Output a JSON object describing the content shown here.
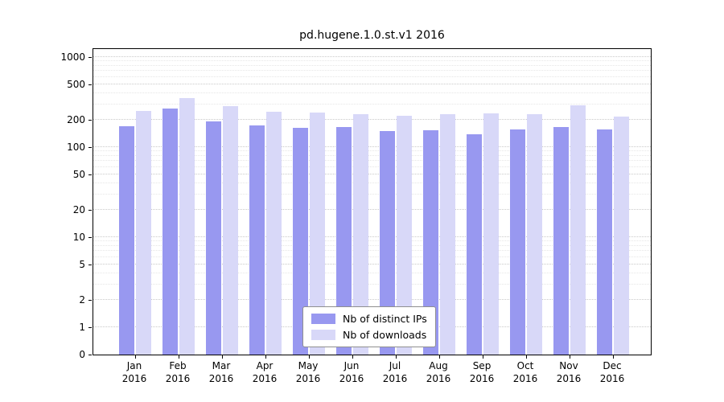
{
  "chart_data": {
    "type": "bar",
    "title": "pd.hugene.1.0.st.v1 2016",
    "year": "2016",
    "categories": [
      "Jan",
      "Feb",
      "Mar",
      "Apr",
      "May",
      "Jun",
      "Jul",
      "Aug",
      "Sep",
      "Oct",
      "Nov",
      "Dec"
    ],
    "series": [
      {
        "name": "Nb of distinct IPs",
        "color": "#9898f0",
        "values": [
          170,
          270,
          195,
          175,
          165,
          168,
          150,
          155,
          140,
          158,
          167,
          156
        ]
      },
      {
        "name": "Nb of downloads",
        "color": "#d8d8f8",
        "values": [
          250,
          350,
          285,
          245,
          240,
          230,
          225,
          230,
          235,
          230,
          290,
          220
        ]
      }
    ],
    "y_ticks": [
      0,
      1,
      2,
      5,
      10,
      20,
      50,
      100,
      200,
      500,
      1000
    ],
    "scale": "symlog",
    "grid": true,
    "legend_position": "lower center",
    "xlabel": "",
    "ylabel": ""
  }
}
